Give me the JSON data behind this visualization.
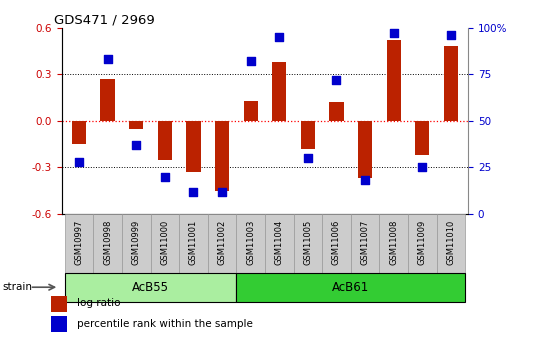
{
  "title": "GDS471 / 2969",
  "samples": [
    "GSM10997",
    "GSM10998",
    "GSM10999",
    "GSM11000",
    "GSM11001",
    "GSM11002",
    "GSM11003",
    "GSM11004",
    "GSM11005",
    "GSM11006",
    "GSM11007",
    "GSM11008",
    "GSM11009",
    "GSM11010"
  ],
  "log_ratios": [
    -0.15,
    0.27,
    -0.05,
    -0.25,
    -0.33,
    -0.45,
    0.13,
    0.38,
    -0.18,
    0.12,
    -0.37,
    0.52,
    -0.22,
    0.48
  ],
  "percentile_ranks": [
    28,
    83,
    37,
    20,
    12,
    12,
    82,
    95,
    30,
    72,
    18,
    97,
    25,
    96
  ],
  "bar_color": "#BB2200",
  "dot_color": "#0000CC",
  "ylim_left": [
    -0.6,
    0.6
  ],
  "ylim_right": [
    0,
    100
  ],
  "yticks_left": [
    -0.6,
    -0.3,
    0.0,
    0.3,
    0.6
  ],
  "yticks_right": [
    0,
    25,
    50,
    75,
    100
  ],
  "ytick_labels_right": [
    "0",
    "25",
    "50",
    "75",
    "100%"
  ],
  "hlines": [
    0.3,
    -0.3
  ],
  "hline_zero_color": "#FF0000",
  "hline_color": "#000000",
  "groups": [
    {
      "label": "AcB55",
      "start": 0,
      "end": 5,
      "color": "#AAEEA0"
    },
    {
      "label": "AcB61",
      "start": 6,
      "end": 13,
      "color": "#33CC33"
    }
  ],
  "strain_label": "strain",
  "legend_log_ratio": "log ratio",
  "legend_percentile": "percentile rank within the sample",
  "tick_label_color_left": "#CC0000",
  "tick_label_color_right": "#0000CC",
  "bar_width": 0.5,
  "dot_size": 28,
  "sample_box_color": "#CCCCCC",
  "sample_box_edge": "#999999"
}
